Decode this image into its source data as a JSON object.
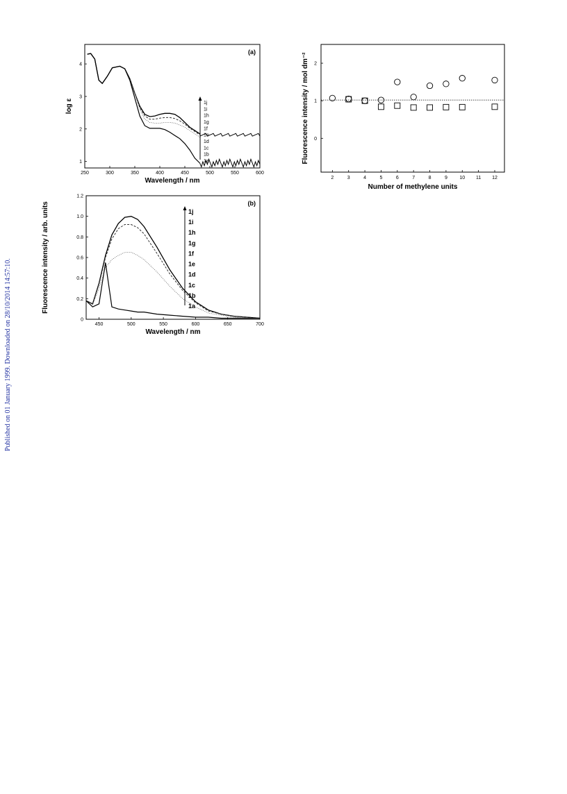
{
  "sidenote": "Published on 01 January 1999. Downloaded on 28/10/2014 14:57:10.",
  "chart_data": [
    {
      "type": "line",
      "panel_label": "(a)",
      "xlabel": "Wavelength / nm",
      "ylabel": "log ε",
      "xlim": [
        250,
        600
      ],
      "ylim": [
        0.8,
        4.6
      ],
      "xticks": [
        250,
        300,
        350,
        400,
        450,
        500,
        550,
        600
      ],
      "yticks": [
        1,
        2,
        3,
        4
      ],
      "legend": [
        "1j",
        "1i",
        "1h",
        "1g",
        "1f",
        "1e",
        "1d",
        "1c",
        "1b",
        "1a"
      ],
      "x": [
        255,
        262,
        270,
        278,
        285,
        295,
        305,
        320,
        330,
        340,
        350,
        360,
        370,
        380,
        390,
        400,
        410,
        420,
        430,
        440,
        450,
        460,
        470,
        480
      ],
      "series": [
        {
          "name": "1j",
          "values": [
            4.3,
            4.32,
            4.15,
            3.5,
            3.4,
            3.62,
            3.88,
            3.93,
            3.85,
            3.55,
            3.1,
            2.7,
            2.45,
            2.38,
            2.4,
            2.45,
            2.48,
            2.48,
            2.45,
            2.35,
            2.2,
            2.05,
            1.95,
            1.85
          ]
        },
        {
          "name": "1e",
          "values": [
            4.3,
            4.32,
            4.15,
            3.5,
            3.4,
            3.62,
            3.88,
            3.93,
            3.85,
            3.55,
            3.1,
            2.65,
            2.4,
            2.3,
            2.3,
            2.33,
            2.35,
            2.35,
            2.32,
            2.25,
            2.15,
            2.02,
            1.92,
            1.82
          ]
        },
        {
          "name": "1b",
          "values": [
            4.3,
            4.32,
            4.15,
            3.5,
            3.4,
            3.62,
            3.88,
            3.93,
            3.85,
            3.55,
            3.1,
            2.6,
            2.3,
            2.2,
            2.18,
            2.18,
            2.2,
            2.2,
            2.18,
            2.12,
            2.05,
            1.95,
            1.85,
            1.75
          ]
        },
        {
          "name": "1a",
          "values": [
            4.3,
            4.32,
            4.15,
            3.5,
            3.4,
            3.62,
            3.88,
            3.93,
            3.85,
            3.5,
            2.95,
            2.4,
            2.1,
            2.02,
            2.02,
            2.02,
            1.98,
            1.9,
            1.8,
            1.7,
            1.55,
            1.35,
            1.1,
            0.95
          ]
        }
      ]
    },
    {
      "type": "line",
      "panel_label": "(b)",
      "xlabel": "Wavelength / nm",
      "ylabel": "Fluorescence intensity / arb. units",
      "xlim": [
        430,
        700
      ],
      "ylim": [
        0,
        1.2
      ],
      "xticks": [
        450,
        500,
        550,
        600,
        650,
        700
      ],
      "yticks": [
        0,
        0.2,
        0.4,
        0.6,
        0.8,
        1.0,
        1.2
      ],
      "legend": [
        "1j",
        "1i",
        "1h",
        "1g",
        "1f",
        "1e",
        "1d",
        "1c",
        "1b",
        "1a"
      ],
      "x": [
        430,
        440,
        450,
        460,
        470,
        480,
        490,
        500,
        510,
        520,
        540,
        560,
        580,
        600,
        620,
        640,
        660,
        680,
        700
      ],
      "series": [
        {
          "name": "1j",
          "values": [
            0.18,
            0.15,
            0.35,
            0.62,
            0.82,
            0.93,
            0.99,
            1.0,
            0.97,
            0.9,
            0.7,
            0.48,
            0.3,
            0.17,
            0.09,
            0.05,
            0.03,
            0.02,
            0.01
          ]
        },
        {
          "name": "1e",
          "values": [
            0.18,
            0.15,
            0.34,
            0.6,
            0.78,
            0.88,
            0.92,
            0.92,
            0.89,
            0.83,
            0.64,
            0.44,
            0.28,
            0.16,
            0.08,
            0.05,
            0.03,
            0.02,
            0.01
          ]
        },
        {
          "name": "1b",
          "values": [
            0.18,
            0.14,
            0.3,
            0.5,
            0.58,
            0.62,
            0.65,
            0.65,
            0.62,
            0.58,
            0.46,
            0.32,
            0.2,
            0.12,
            0.06,
            0.04,
            0.02,
            0.01,
            0.01
          ]
        },
        {
          "name": "1a",
          "values": [
            0.18,
            0.12,
            0.15,
            0.55,
            0.12,
            0.1,
            0.09,
            0.08,
            0.07,
            0.07,
            0.05,
            0.04,
            0.03,
            0.02,
            0.02,
            0.01,
            0.01,
            0.01,
            0.01
          ]
        }
      ]
    },
    {
      "type": "scatter",
      "xlabel": "Number of methylene units",
      "ylabel": "Fluorescence intensity / mol dm⁻²",
      "xlim": [
        1.3,
        12.6
      ],
      "ylim": [
        -0.9,
        2.5
      ],
      "xticks": [
        2,
        3,
        4,
        5,
        6,
        7,
        8,
        9,
        10,
        11,
        12
      ],
      "yticks": [
        0,
        1,
        2
      ],
      "reference_line_y": 1.02,
      "series": [
        {
          "marker": "circle",
          "x": [
            2,
            3,
            4,
            5,
            6,
            7,
            8,
            9,
            10,
            12
          ],
          "values": [
            1.07,
            1.05,
            1.0,
            1.02,
            1.5,
            1.1,
            1.4,
            1.45,
            1.6,
            1.55
          ]
        },
        {
          "marker": "square",
          "x": [
            3,
            4,
            5,
            6,
            7,
            8,
            9,
            10,
            12
          ],
          "values": [
            1.04,
            1.0,
            0.84,
            0.87,
            0.82,
            0.82,
            0.83,
            0.83,
            0.84
          ]
        }
      ]
    }
  ]
}
